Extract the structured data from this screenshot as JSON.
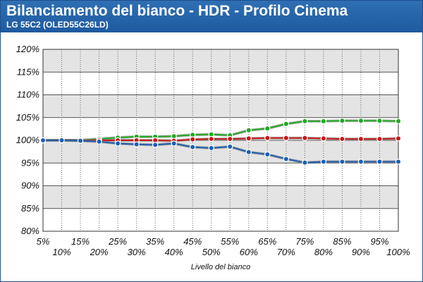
{
  "header": {
    "title": "Bilanciamento del bianco - HDR - Profilo Cinema",
    "subtitle": "LG 55C2 (OLED55C26LD)"
  },
  "chart_data": {
    "type": "line",
    "title": "Bilanciamento del bianco - HDR - Profilo Cinema",
    "subtitle": "LG 55C2 (OLED55C26LD)",
    "xlabel": "Livello del bianco",
    "ylabel": "",
    "categories": [
      "5%",
      "10%",
      "15%",
      "20%",
      "25%",
      "30%",
      "35%",
      "40%",
      "45%",
      "50%",
      "55%",
      "60%",
      "65%",
      "70%",
      "75%",
      "80%",
      "85%",
      "90%",
      "95%",
      "100%"
    ],
    "y_ticks": [
      "120%",
      "115%",
      "110%",
      "105%",
      "100%",
      "95%",
      "90%",
      "85%",
      "80%"
    ],
    "ylim": [
      80,
      120
    ],
    "grid": true,
    "series": [
      {
        "color": "#22a822",
        "values": [
          100.0,
          100.0,
          100.0,
          100.3,
          100.6,
          100.8,
          100.8,
          100.9,
          101.2,
          101.3,
          101.1,
          102.2,
          102.6,
          103.6,
          104.2,
          104.2,
          104.3,
          104.3,
          104.3,
          104.2
        ]
      },
      {
        "color": "#c81818",
        "values": [
          100.0,
          100.0,
          100.0,
          100.0,
          100.0,
          100.0,
          100.0,
          99.9,
          100.2,
          100.3,
          100.3,
          100.4,
          100.5,
          100.5,
          100.5,
          100.4,
          100.3,
          100.3,
          100.3,
          100.4
        ]
      },
      {
        "color": "#1f5fb0",
        "values": [
          100.0,
          100.0,
          99.9,
          99.7,
          99.3,
          99.1,
          99.0,
          99.3,
          98.5,
          98.3,
          98.6,
          97.4,
          96.9,
          95.9,
          95.1,
          95.3,
          95.3,
          95.3,
          95.3,
          95.3
        ]
      }
    ]
  }
}
